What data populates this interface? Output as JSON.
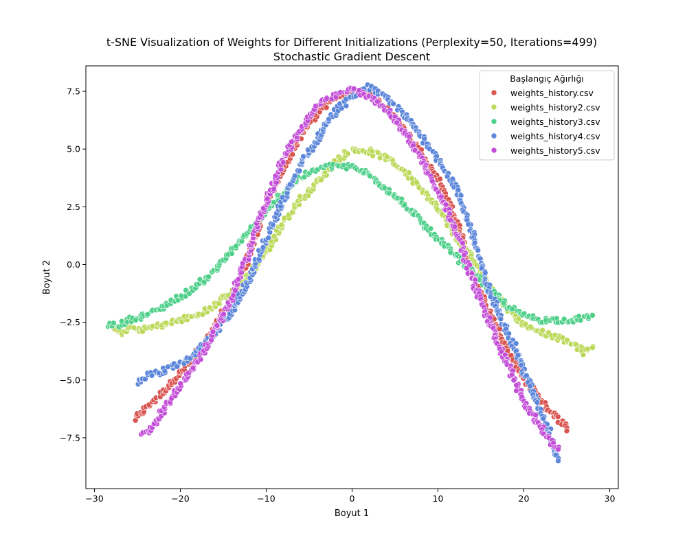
{
  "chart_data": {
    "type": "scatter",
    "title": "t-SNE Visualization of Weights for Different Initializations (Perplexity=50, Iterations=499)",
    "subtitle": "Stochastic Gradient Descent",
    "xlabel": "Boyut 1",
    "ylabel": "Boyut 2",
    "xlim": [
      -31,
      31
    ],
    "ylim": [
      -9.7,
      8.6
    ],
    "xticks": [
      -30,
      -20,
      -10,
      0,
      10,
      20,
      30
    ],
    "xtick_labels": [
      "−30",
      "−20",
      "−10",
      "0",
      "10",
      "20",
      "30"
    ],
    "yticks": [
      -7.5,
      -5.0,
      -2.5,
      0.0,
      2.5,
      5.0,
      7.5
    ],
    "ytick_labels": [
      "−7.5",
      "−5.0",
      "−2.5",
      "0.0",
      "2.5",
      "5.0",
      "7.5"
    ],
    "grid": false,
    "legend": {
      "title": "Başlangıç Ağırlığı",
      "position": "top-right"
    },
    "series": [
      {
        "name": "weights_history.csv",
        "color": "#d9534f",
        "path": [
          [
            -25.3,
            -6.7
          ],
          [
            -24,
            -6.2
          ],
          [
            -22,
            -5.5
          ],
          [
            -20,
            -4.7
          ],
          [
            -18,
            -3.8
          ],
          [
            -16,
            -2.7
          ],
          [
            -14,
            -1.4
          ],
          [
            -12,
            0.4
          ],
          [
            -10,
            2.6
          ],
          [
            -8,
            4.2
          ],
          [
            -6,
            5.6
          ],
          [
            -4,
            6.6
          ],
          [
            -2,
            7.2
          ],
          [
            0,
            7.5
          ],
          [
            2,
            7.3
          ],
          [
            4,
            6.8
          ],
          [
            6,
            5.9
          ],
          [
            8,
            4.8
          ],
          [
            10,
            3.6
          ],
          [
            12,
            2.0
          ],
          [
            13,
            0.9
          ],
          [
            14,
            -0.3
          ],
          [
            15,
            -1.2
          ],
          [
            16,
            -2.0
          ],
          [
            17,
            -2.8
          ],
          [
            18,
            -3.6
          ],
          [
            19,
            -4.3
          ],
          [
            20,
            -4.9
          ],
          [
            21,
            -5.4
          ],
          [
            22,
            -5.9
          ],
          [
            23,
            -6.3
          ],
          [
            24,
            -6.6
          ],
          [
            25,
            -7.2
          ]
        ]
      },
      {
        "name": "weights_history2.csv",
        "color": "#bcd95a",
        "path": [
          [
            -28,
            -2.6
          ],
          [
            -27,
            -3.0
          ],
          [
            -26,
            -2.8
          ],
          [
            -24,
            -2.8
          ],
          [
            -22,
            -2.6
          ],
          [
            -20,
            -2.4
          ],
          [
            -18,
            -2.2
          ],
          [
            -16,
            -1.8
          ],
          [
            -14,
            -1.2
          ],
          [
            -12,
            -0.4
          ],
          [
            -10,
            0.6
          ],
          [
            -8,
            1.8
          ],
          [
            -6,
            2.8
          ],
          [
            -4,
            3.6
          ],
          [
            -2,
            4.4
          ],
          [
            0,
            5.0
          ],
          [
            2,
            4.9
          ],
          [
            4,
            4.6
          ],
          [
            6,
            4.1
          ],
          [
            8,
            3.3
          ],
          [
            10,
            2.4
          ],
          [
            12,
            1.3
          ],
          [
            14,
            0.2
          ],
          [
            16,
            -0.9
          ],
          [
            18,
            -1.8
          ],
          [
            20,
            -2.6
          ],
          [
            22,
            -2.9
          ],
          [
            24,
            -3.2
          ],
          [
            26,
            -3.5
          ],
          [
            27,
            -3.8
          ],
          [
            28,
            -3.6
          ]
        ]
      },
      {
        "name": "weights_history3.csv",
        "color": "#4fd08a",
        "path": [
          [
            -28.4,
            -2.6
          ],
          [
            -27,
            -2.6
          ],
          [
            -26,
            -2.4
          ],
          [
            -24,
            -2.2
          ],
          [
            -22,
            -1.8
          ],
          [
            -20,
            -1.4
          ],
          [
            -18,
            -0.9
          ],
          [
            -16,
            -0.3
          ],
          [
            -14,
            0.6
          ],
          [
            -12,
            1.4
          ],
          [
            -10,
            2.3
          ],
          [
            -8,
            3.1
          ],
          [
            -6,
            3.8
          ],
          [
            -4,
            4.1
          ],
          [
            -2,
            4.3
          ],
          [
            0,
            4.2
          ],
          [
            2,
            3.9
          ],
          [
            4,
            3.3
          ],
          [
            6,
            2.6
          ],
          [
            8,
            1.9
          ],
          [
            10,
            1.1
          ],
          [
            12,
            0.4
          ],
          [
            14,
            -0.3
          ],
          [
            16,
            -1.1
          ],
          [
            18,
            -1.8
          ],
          [
            20,
            -2.2
          ],
          [
            22,
            -2.4
          ],
          [
            24,
            -2.4
          ],
          [
            26,
            -2.4
          ],
          [
            28,
            -2.2
          ]
        ]
      },
      {
        "name": "weights_history4.csv",
        "color": "#5b86d9",
        "path": [
          [
            -25,
            -5.2
          ],
          [
            -24,
            -4.8
          ],
          [
            -22,
            -4.6
          ],
          [
            -20,
            -4.3
          ],
          [
            -18,
            -3.8
          ],
          [
            -16,
            -3.0
          ],
          [
            -14,
            -2.0
          ],
          [
            -12,
            -0.6
          ],
          [
            -10,
            1.1
          ],
          [
            -8,
            2.8
          ],
          [
            -6,
            4.3
          ],
          [
            -4,
            5.5
          ],
          [
            -2,
            6.6
          ],
          [
            0,
            7.3
          ],
          [
            2,
            7.7
          ],
          [
            4,
            7.2
          ],
          [
            6,
            6.5
          ],
          [
            8,
            5.6
          ],
          [
            10,
            4.6
          ],
          [
            12,
            3.4
          ],
          [
            14,
            1.4
          ],
          [
            15,
            0.0
          ],
          [
            16,
            -1.2
          ],
          [
            17,
            -2.0
          ],
          [
            18,
            -2.8
          ],
          [
            19,
            -3.6
          ],
          [
            20,
            -4.6
          ],
          [
            21,
            -5.5
          ],
          [
            22,
            -6.4
          ],
          [
            23,
            -7.2
          ],
          [
            24,
            -8.5
          ]
        ]
      },
      {
        "name": "weights_history5.csv",
        "color": "#c34fd8",
        "path": [
          [
            -24.5,
            -7.4
          ],
          [
            -23.5,
            -7.2
          ],
          [
            -22,
            -6.3
          ],
          [
            -20,
            -5.3
          ],
          [
            -18,
            -4.2
          ],
          [
            -16,
            -2.9
          ],
          [
            -14,
            -1.4
          ],
          [
            -12,
            0.6
          ],
          [
            -10,
            2.7
          ],
          [
            -8,
            4.6
          ],
          [
            -6,
            5.9
          ],
          [
            -4,
            6.9
          ],
          [
            -2,
            7.3
          ],
          [
            0,
            7.6
          ],
          [
            2,
            7.3
          ],
          [
            4,
            6.7
          ],
          [
            6,
            5.8
          ],
          [
            8,
            4.6
          ],
          [
            10,
            3.2
          ],
          [
            12,
            1.6
          ],
          [
            13,
            0.5
          ],
          [
            14,
            -0.6
          ],
          [
            15,
            -1.6
          ],
          [
            16,
            -2.5
          ],
          [
            17,
            -3.4
          ],
          [
            18,
            -4.2
          ],
          [
            19,
            -5.1
          ],
          [
            20,
            -5.9
          ],
          [
            21,
            -6.5
          ],
          [
            22,
            -7.0
          ],
          [
            23,
            -7.6
          ],
          [
            24,
            -8.0
          ]
        ]
      }
    ]
  }
}
